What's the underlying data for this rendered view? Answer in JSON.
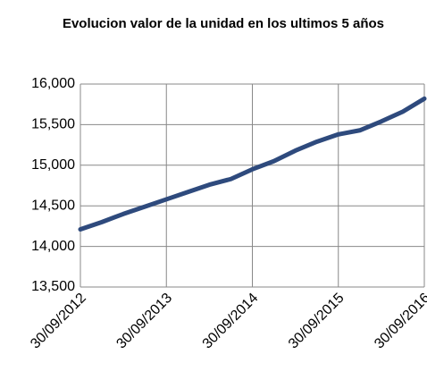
{
  "chart_data": {
    "type": "line",
    "title": "Evolucion valor de la unidad en los ultimos 5 años",
    "categories": [
      "30/09/2012",
      null,
      null,
      null,
      "30/09/2013",
      null,
      null,
      null,
      "30/09/2014",
      null,
      null,
      null,
      "30/09/2015",
      null,
      null,
      null,
      "30/09/2016"
    ],
    "series": [
      {
        "name": null,
        "color": "#2e4a7d",
        "values": [
          14210,
          14300,
          14400,
          14490,
          14580,
          14670,
          14760,
          14830,
          14950,
          15050,
          15180,
          15290,
          15380,
          15430,
          15540,
          15660,
          15820
        ]
      }
    ],
    "ylim": [
      13500,
      16000
    ],
    "yticks": [
      {
        "value": 13500,
        "label": "13,500"
      },
      {
        "value": 14000,
        "label": "14,000"
      },
      {
        "value": 14500,
        "label": "14,500"
      },
      {
        "value": 15000,
        "label": "15,000"
      },
      {
        "value": 15500,
        "label": "15,500"
      },
      {
        "value": 16000,
        "label": "16,000"
      }
    ],
    "grid": true
  }
}
